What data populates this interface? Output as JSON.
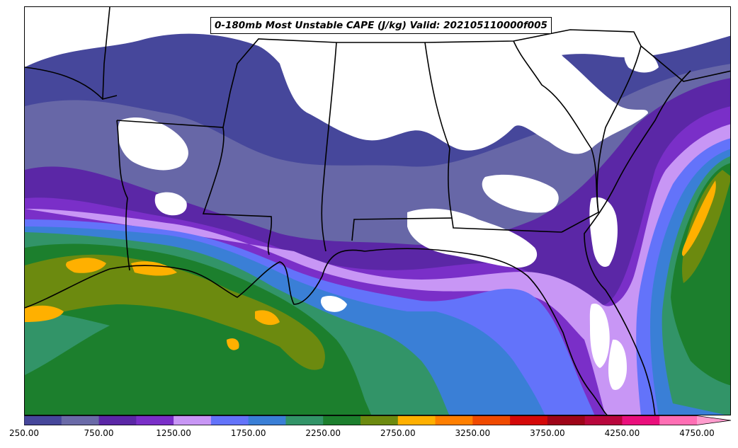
{
  "title": "0-180mb Most Unstable CAPE (J/kg) Valid: 202105110000f005",
  "colorbar": {
    "levels": [
      250,
      500,
      750,
      1000,
      1250,
      1500,
      1750,
      2000,
      2250,
      2500,
      2750,
      3000,
      3250,
      3500,
      3750,
      4000,
      4250,
      4500,
      4750
    ],
    "colors": [
      "#46479b",
      "#6a6aa8",
      "#5b27a6",
      "#7a2fc8",
      "#c896f5",
      "#6373fa",
      "#3a7fd6",
      "#329468",
      "#1c7f2d",
      "#6c8a0f",
      "#ffb000",
      "#ff7f00",
      "#f04a00",
      "#d40808",
      "#9e0418",
      "#b8063c",
      "#ea0f7c",
      "#ff6eb4"
    ],
    "extend_color": "#ff9ccd",
    "tick_labels": [
      "250.00",
      "750.00",
      "1250.00",
      "1750.00",
      "2250.00",
      "2750.00",
      "3250.00",
      "3750.00",
      "4250.00",
      "4750.00"
    ]
  }
}
